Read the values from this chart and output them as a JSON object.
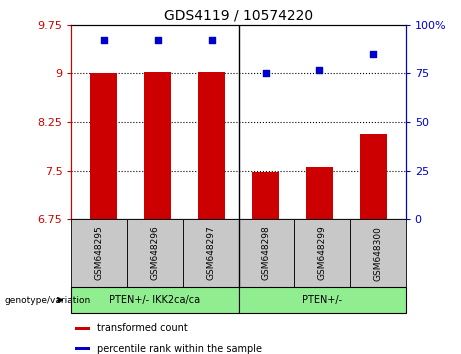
{
  "title": "GDS4119 / 10574220",
  "samples": [
    "GSM648295",
    "GSM648296",
    "GSM648297",
    "GSM648298",
    "GSM648299",
    "GSM648300"
  ],
  "bar_values": [
    9.01,
    9.02,
    9.03,
    7.48,
    7.56,
    8.07
  ],
  "percentile_values": [
    92,
    92,
    92,
    75,
    77,
    85
  ],
  "ylim": [
    6.75,
    9.75
  ],
  "ylim_right": [
    0,
    100
  ],
  "yticks_left": [
    6.75,
    7.5,
    8.25,
    9.0,
    9.75
  ],
  "yticks_right": [
    0,
    25,
    50,
    75,
    100
  ],
  "ytick_labels_left": [
    "6.75",
    "7.5",
    "8.25",
    "9",
    "9.75"
  ],
  "ytick_labels_right": [
    "0",
    "25",
    "50",
    "75",
    "100%"
  ],
  "bar_color": "#cc0000",
  "dot_color": "#0000cc",
  "group1_label": "PTEN+/- IKK2ca/ca",
  "group2_label": "PTEN+/-",
  "group1_color": "#90ee90",
  "group2_color": "#90ee90",
  "genotype_label": "genotype/variation",
  "legend_bar_label": "transformed count",
  "legend_dot_label": "percentile rank within the sample",
  "bar_width": 0.5,
  "sample_box_color": "#c8c8c8",
  "n_group1": 3,
  "n_group2": 3
}
